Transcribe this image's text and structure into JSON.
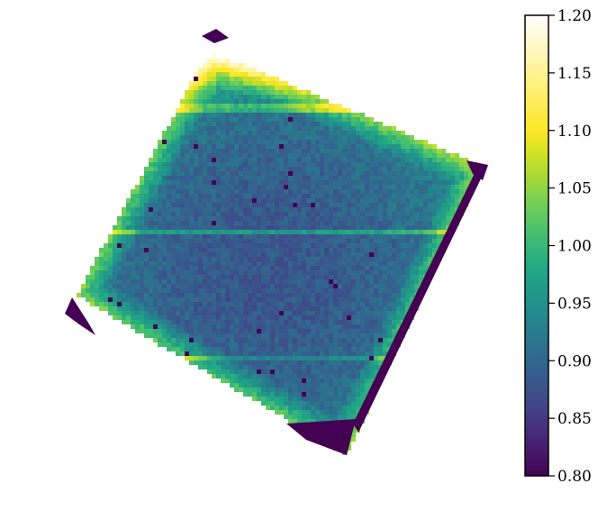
{
  "chart_data": {
    "type": "heatmap",
    "title": "",
    "xlabel": "",
    "ylabel": "",
    "axes_visible": false,
    "colormap": "viridis",
    "vmin": 0.8,
    "vmax": 1.2,
    "colorbar": {
      "placement": "right",
      "ticks": [
        0.8,
        0.85,
        0.9,
        0.95,
        1.0,
        1.05,
        1.1,
        1.15,
        1.2
      ],
      "tick_labels": [
        "0.80",
        "0.85",
        "0.90",
        "0.95",
        "1.00",
        "1.05",
        "1.10",
        "1.15",
        "1.20"
      ]
    },
    "description_values": {
      "center_value": 0.88,
      "edge_value": 1.12,
      "masked_corner_value": 0.8
    },
    "colors": {
      "viridis_low": "#440154",
      "viridis_mid": "#21918c",
      "viridis_high_yellow": "#fde725",
      "top_white": "#ffffff"
    }
  }
}
